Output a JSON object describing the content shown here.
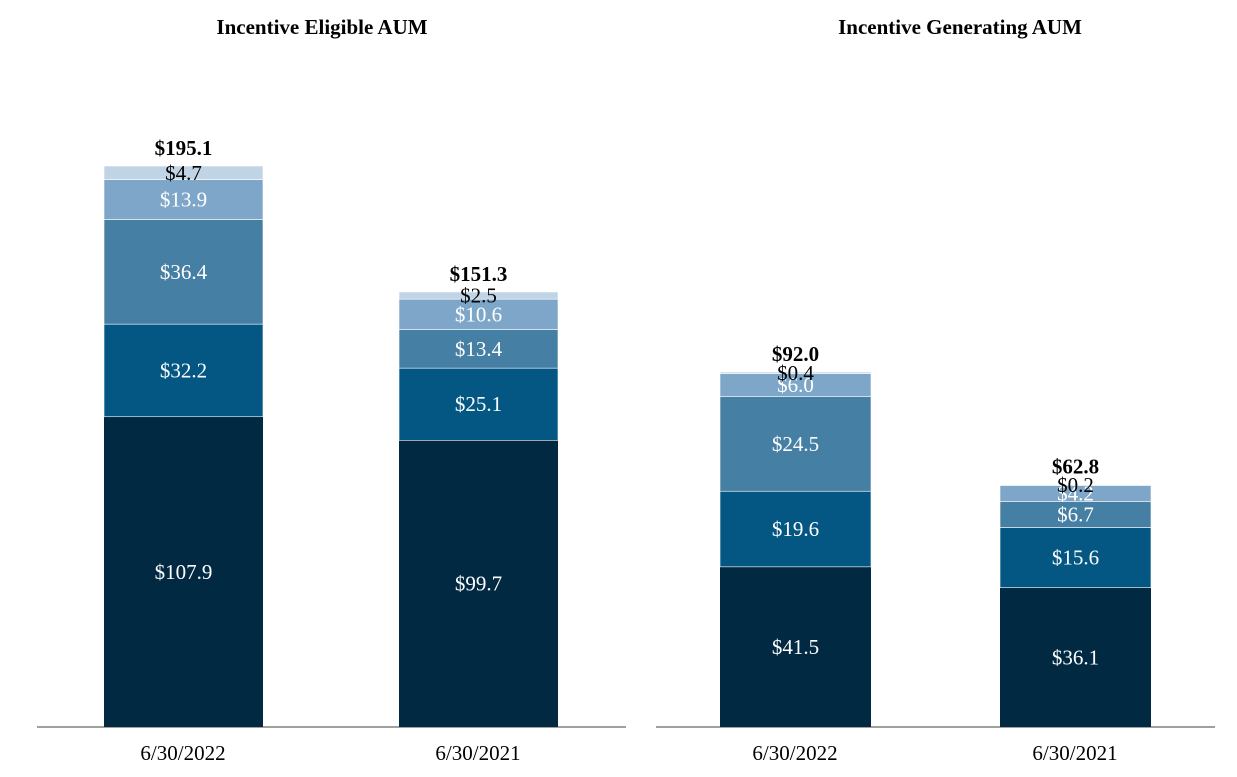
{
  "chart_data": [
    {
      "type": "bar",
      "stacked": true,
      "title": "Incentive Eligible AUM",
      "categories": [
        "6/30/2022",
        "6/30/2021"
      ],
      "totals": [
        195.1,
        151.3
      ],
      "total_labels": [
        "$195.1",
        "$151.3"
      ],
      "series": [
        {
          "name": "tier-1",
          "values": [
            107.9,
            99.7
          ],
          "labels": [
            "$107.9",
            "$99.7"
          ]
        },
        {
          "name": "tier-2",
          "values": [
            32.2,
            25.1
          ],
          "labels": [
            "$32.2",
            "$25.1"
          ]
        },
        {
          "name": "tier-3",
          "values": [
            36.4,
            13.4
          ],
          "labels": [
            "$36.4",
            "$13.4"
          ]
        },
        {
          "name": "tier-4",
          "values": [
            13.9,
            10.6
          ],
          "labels": [
            "$13.9",
            "$10.6"
          ]
        },
        {
          "name": "tier-5",
          "values": [
            4.7,
            2.5
          ],
          "labels": [
            "$4.7",
            "$2.5"
          ]
        }
      ],
      "ylim": [
        0,
        195.1
      ]
    },
    {
      "type": "bar",
      "stacked": true,
      "title": "Incentive Generating AUM",
      "categories": [
        "6/30/2022",
        "6/30/2021"
      ],
      "totals": [
        92.0,
        62.8
      ],
      "total_labels": [
        "$92.0",
        "$62.8"
      ],
      "series": [
        {
          "name": "tier-1",
          "values": [
            41.5,
            36.1
          ],
          "labels": [
            "$41.5",
            "$36.1"
          ]
        },
        {
          "name": "tier-2",
          "values": [
            19.6,
            15.6
          ],
          "labels": [
            "$19.6",
            "$15.6"
          ]
        },
        {
          "name": "tier-3",
          "values": [
            24.5,
            6.7
          ],
          "labels": [
            "$24.5",
            "$6.7"
          ]
        },
        {
          "name": "tier-4",
          "values": [
            6.0,
            4.2
          ],
          "labels": [
            "$6.0",
            "$4.2"
          ]
        },
        {
          "name": "tier-5",
          "values": [
            0.4,
            0.2
          ],
          "labels": [
            "$0.4",
            "$0.2"
          ]
        }
      ],
      "ylim": [
        0,
        92.0
      ]
    }
  ],
  "colors": {
    "tier-1": "#012942",
    "tier-2": "#045783",
    "tier-3": "#467fa4",
    "tier-4": "#7ea6c8",
    "tier-5": "#c0d4e6",
    "axis": "#808080",
    "label_on_light": "#000000",
    "label_on_dark": "#ffffff"
  }
}
